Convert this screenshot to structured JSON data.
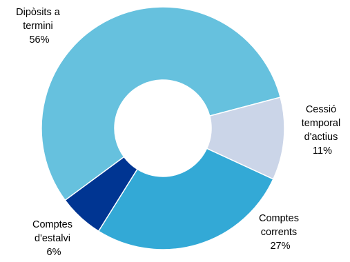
{
  "chart_data": {
    "type": "pie",
    "donut": true,
    "slices": [
      {
        "label_lines": [
          "Dipòsits a",
          "termini"
        ],
        "pct_label": "56%",
        "value": 56,
        "color": "#66c1de"
      },
      {
        "label_lines": [
          "Cessió",
          "temporal",
          "d'actius"
        ],
        "pct_label": "11%",
        "value": 11,
        "color": "#cbd5e8"
      },
      {
        "label_lines": [
          "Comptes",
          "corrents"
        ],
        "pct_label": "27%",
        "value": 27,
        "color": "#33a9d6"
      },
      {
        "label_lines": [
          "Comptes",
          "d'estalvi"
        ],
        "pct_label": "6%",
        "value": 6,
        "color": "#003592"
      }
    ]
  }
}
